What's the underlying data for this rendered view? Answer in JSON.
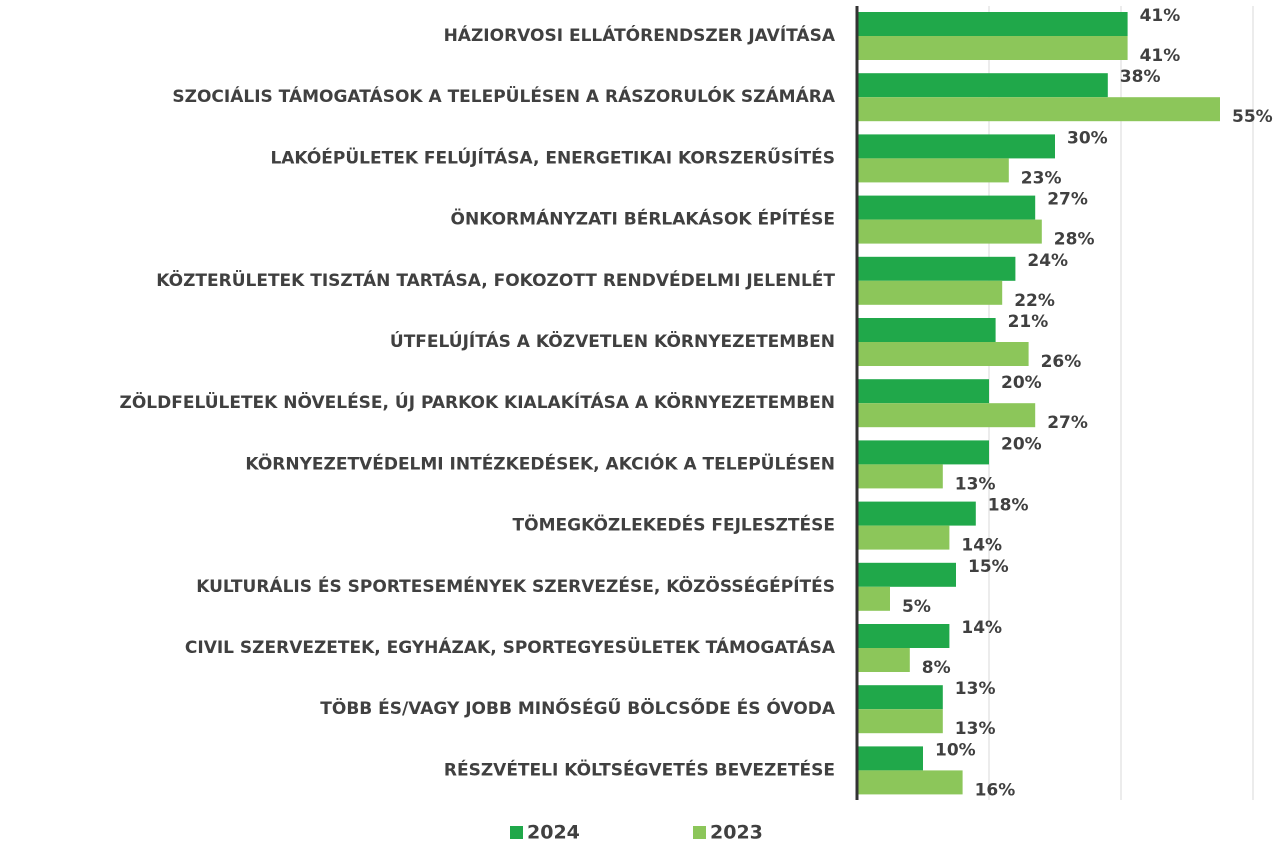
{
  "chart_data": {
    "type": "hbar",
    "categories": [
      "HÁZIORVOSI ELLÁTÓRENDSZER JAVÍTÁSA",
      "SZOCIÁLIS TÁMOGATÁSOK A TELEPÜLÉSEN A RÁSZORULÓK SZÁMÁRA",
      "LAKÓÉPÜLETEK FELÚJÍTÁSA, ENERGETIKAI KORSZERŰSÍTÉS",
      "ÖNKORMÁNYZATI BÉRLAKÁSOK ÉPÍTÉSE",
      "KÖZTERÜLETEK TISZTÁN TARTÁSA, FOKOZOTT RENDVÉDELMI JELENLÉT",
      "ÚTFELÚJÍTÁS A KÖZVETLEN KÖRNYEZETEMBEN",
      "ZÖLDFELÜLETEK NÖVELÉSE, ÚJ PARKOK KIALAKÍTÁSA A KÖRNYEZETEMBEN",
      "KÖRNYEZETVÉDELMI INTÉZKEDÉSEK, AKCIÓK A TELEPÜLÉSEN",
      "TÖMEGKÖZLEKEDÉS FEJLESZTÉSE",
      "KULTURÁLIS ÉS SPORTESEMÉNYEK SZERVEZÉSE, KÖZÖSSÉGÉPÍTÉS",
      "CIVIL SZERVEZETEK, EGYHÁZAK, SPORTEGYESÜLETEK TÁMOGATÁSA",
      "TÖBB ÉS/VAGY JOBB MINŐSÉGŰ BÖLCSŐDE ÉS ÓVODA",
      "RÉSZVÉTELI KÖLTSÉGVETÉS BEVEZETÉSE"
    ],
    "series": [
      {
        "name": "2024",
        "color": "#20a84a",
        "values": [
          41,
          38,
          30,
          27,
          24,
          21,
          20,
          20,
          18,
          15,
          14,
          13,
          10
        ],
        "value_labels": [
          "41%",
          "38%",
          "30%",
          "27%",
          "24%",
          "21%",
          "20%",
          "20%",
          "18%",
          "15%",
          "14%",
          "13%",
          "10%"
        ]
      },
      {
        "name": "2023",
        "color": "#8cc65a",
        "values": [
          41,
          55,
          23,
          28,
          22,
          26,
          27,
          13,
          14,
          5,
          8,
          13,
          16
        ],
        "value_labels": [
          "41%",
          "55%",
          "23%",
          "28%",
          "22%",
          "26%",
          "27%",
          "13%",
          "14%",
          "5%",
          "8%",
          "13%",
          "16%"
        ]
      }
    ],
    "xlim": [
      0,
      60
    ],
    "xticks": [
      0,
      20,
      40,
      60
    ],
    "tick_labels": false,
    "grid": true,
    "legend": "bottom"
  }
}
